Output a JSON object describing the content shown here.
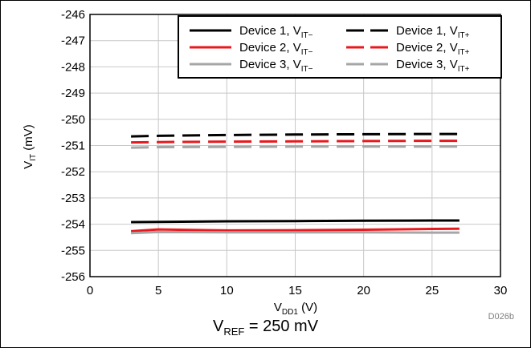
{
  "chart_data": {
    "type": "line",
    "xlabel": {
      "main": "V",
      "sub": "DD1",
      "rest": " (V)"
    },
    "ylabel": {
      "main": "V",
      "sub": "IT",
      "rest": " (mV)"
    },
    "xlim": [
      0,
      30
    ],
    "ylim": [
      -256,
      -246
    ],
    "xticks": [
      "0",
      "5",
      "10",
      "15",
      "20",
      "25",
      "30"
    ],
    "yticks": [
      "-246",
      "-247",
      "-248",
      "-249",
      "-250",
      "-251",
      "-252",
      "-253",
      "-254",
      "-255",
      "-256"
    ],
    "grid": true,
    "legend_position": "top-right",
    "figure_id": "D026b",
    "series": [
      {
        "device": "Device 1, V",
        "sub": "IT−",
        "color": "#000000",
        "dash": "solid",
        "x": [
          3,
          5,
          10,
          15,
          20,
          25,
          27
        ],
        "y": [
          -253.92,
          -253.91,
          -253.89,
          -253.88,
          -253.87,
          -253.86,
          -253.86
        ]
      },
      {
        "device": "Device 1, V",
        "sub": "IT+",
        "color": "#000000",
        "dash": "dashed",
        "x": [
          3,
          5,
          10,
          15,
          20,
          25,
          27
        ],
        "y": [
          -250.65,
          -250.63,
          -250.6,
          -250.58,
          -250.57,
          -250.56,
          -250.56
        ]
      },
      {
        "device": "Device 2, V",
        "sub": "IT−",
        "color": "#e8191e",
        "dash": "solid",
        "x": [
          3,
          5,
          10,
          15,
          20,
          25,
          27
        ],
        "y": [
          -254.27,
          -254.2,
          -254.24,
          -254.23,
          -254.21,
          -254.18,
          -254.17
        ]
      },
      {
        "device": "Device 2, V",
        "sub": "IT+",
        "color": "#e8191e",
        "dash": "dashed",
        "x": [
          3,
          5,
          10,
          15,
          20,
          25,
          27
        ],
        "y": [
          -250.88,
          -250.87,
          -250.85,
          -250.84,
          -250.83,
          -250.82,
          -250.82
        ]
      },
      {
        "device": "Device 3, V",
        "sub": "IT−",
        "color": "#a6a6a6",
        "dash": "solid",
        "x": [
          3,
          5,
          10,
          15,
          20,
          25,
          27
        ],
        "y": [
          -254.34,
          -254.3,
          -254.31,
          -254.31,
          -254.31,
          -254.32,
          -254.32
        ]
      },
      {
        "device": "Device 3, V",
        "sub": "IT+",
        "color": "#a6a6a6",
        "dash": "dashed",
        "x": [
          3,
          5,
          10,
          15,
          20,
          25,
          27
        ],
        "y": [
          -251.08,
          -251.06,
          -251.05,
          -251.04,
          -251.04,
          -251.04,
          -251.04
        ]
      }
    ],
    "caption": {
      "main": "V",
      "sub": "REF",
      "rest": " = 250 mV"
    }
  }
}
